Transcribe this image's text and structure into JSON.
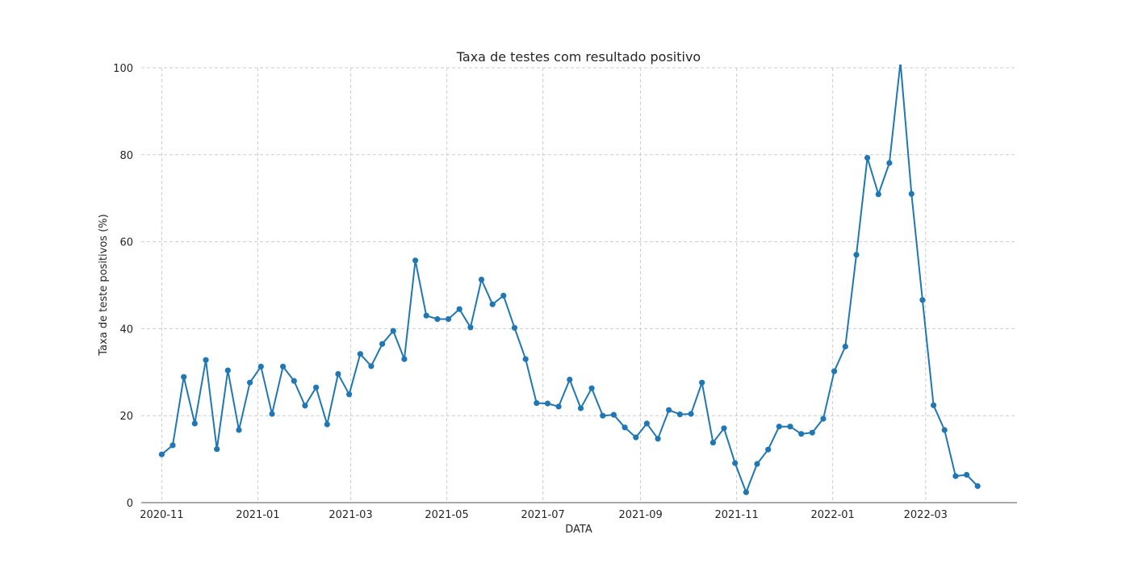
{
  "chart_data": {
    "type": "line",
    "title": "Taxa de testes com resultado positivo",
    "xlabel": "DATA",
    "ylabel": "Taxa de teste positivos (%)",
    "ylim": [
      0,
      100
    ],
    "xlim": [
      "2020-10-19",
      "2022-04-28"
    ],
    "grid": true,
    "x_ticks": [
      "2020-11",
      "2021-01",
      "2021-03",
      "2021-05",
      "2021-07",
      "2021-09",
      "2021-11",
      "2022-01",
      "2022-03"
    ],
    "y_ticks": [
      "0",
      "20",
      "40",
      "60",
      "80",
      "100"
    ],
    "color": "#1f77b4",
    "series": [
      {
        "x": [
          "2020-11-01",
          "2020-11-08",
          "2020-11-15",
          "2020-11-22",
          "2020-11-29",
          "2020-12-06",
          "2020-12-13",
          "2020-12-20",
          "2020-12-27",
          "2021-01-03",
          "2021-01-10",
          "2021-01-17",
          "2021-01-24",
          "2021-01-31",
          "2021-02-07",
          "2021-02-14",
          "2021-02-21",
          "2021-02-28",
          "2021-03-07",
          "2021-03-14",
          "2021-03-21",
          "2021-03-28",
          "2021-04-04",
          "2021-04-11",
          "2021-04-18",
          "2021-04-25",
          "2021-05-02",
          "2021-05-09",
          "2021-05-16",
          "2021-05-23",
          "2021-05-30",
          "2021-06-06",
          "2021-06-13",
          "2021-06-20",
          "2021-06-27",
          "2021-07-04",
          "2021-07-11",
          "2021-07-18",
          "2021-07-25",
          "2021-08-01",
          "2021-08-08",
          "2021-08-15",
          "2021-08-22",
          "2021-08-29",
          "2021-09-05",
          "2021-09-12",
          "2021-09-19",
          "2021-09-26",
          "2021-10-03",
          "2021-10-10",
          "2021-10-17",
          "2021-10-24",
          "2021-10-31",
          "2021-11-07",
          "2021-11-14",
          "2021-11-21",
          "2021-11-28",
          "2021-12-05",
          "2021-12-12",
          "2021-12-19",
          "2021-12-26",
          "2022-01-02",
          "2022-01-09",
          "2022-01-16",
          "2022-01-23",
          "2022-01-30",
          "2022-02-06",
          "2022-02-13",
          "2022-02-20",
          "2022-02-27",
          "2022-03-06",
          "2022-03-13",
          "2022-03-20",
          "2022-03-27",
          "2022-04-03"
        ],
        "y": [
          11.1,
          13.2,
          28.9,
          18.2,
          32.8,
          12.3,
          30.4,
          16.7,
          27.6,
          31.3,
          20.4,
          31.3,
          28.0,
          22.3,
          26.5,
          18.0,
          29.6,
          24.9,
          34.2,
          31.4,
          36.5,
          39.5,
          33.0,
          55.7,
          43.0,
          42.2,
          42.2,
          44.5,
          40.3,
          51.3,
          45.6,
          47.6,
          40.2,
          33.0,
          22.9,
          22.8,
          22.1,
          28.3,
          21.7,
          26.3,
          20.0,
          20.2,
          17.3,
          15.0,
          18.2,
          14.7,
          21.3,
          20.3,
          20.4,
          27.6,
          13.8,
          17.1,
          9.1,
          2.4,
          8.9,
          12.2,
          17.5,
          17.5,
          15.8,
          16.1,
          19.3,
          30.2,
          35.9,
          57.0,
          79.3,
          70.9,
          78.1,
          101.3,
          71.0,
          46.6,
          22.4,
          16.7,
          6.1,
          6.4,
          3.8
        ]
      }
    ]
  }
}
